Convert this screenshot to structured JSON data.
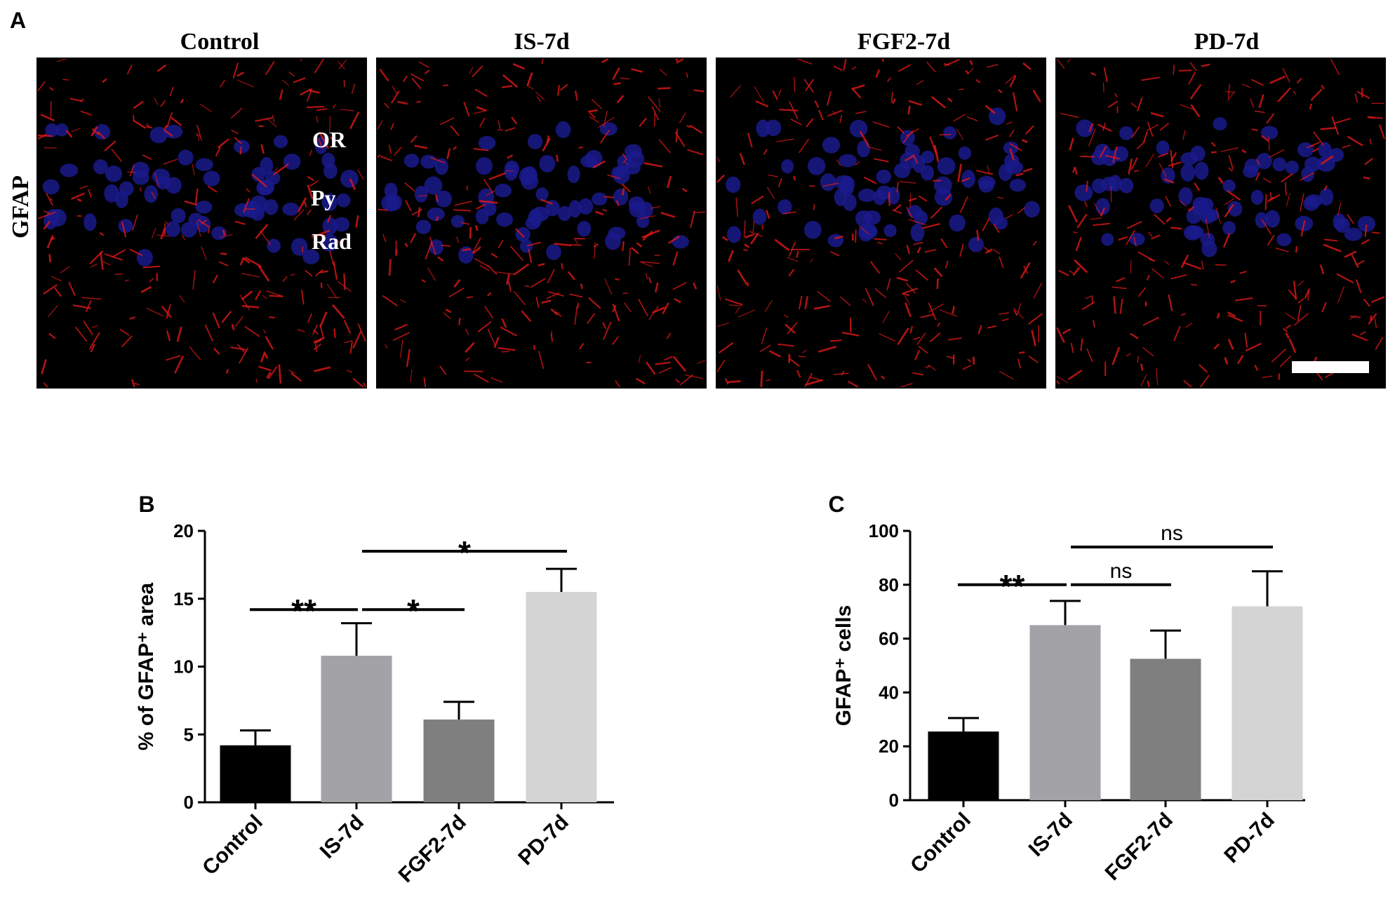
{
  "figure_a": {
    "label": "A",
    "columns": [
      "Control",
      "IS-7d",
      "FGF2-7d",
      "PD-7d"
    ],
    "row_label": "GFAP",
    "layers": [
      "OR",
      "Py",
      "Rad"
    ]
  },
  "chart_data": [
    {
      "type": "bar",
      "panel": "B",
      "ylabel": "% of GFAP⁺ area",
      "categories": [
        "Control",
        "IS-7d",
        "FGF2-7d",
        "PD-7d"
      ],
      "values": [
        4.2,
        10.8,
        6.1,
        15.5
      ],
      "errors": [
        1.1,
        2.4,
        1.3,
        1.7
      ],
      "colors": [
        "#000000",
        "#a2a2a7",
        "#7f7f7f",
        "#d4d4d4"
      ],
      "ylim": [
        0,
        20
      ],
      "yticks": [
        0,
        5,
        10,
        15,
        20
      ],
      "annotations": [
        {
          "between": [
            "Control",
            "IS-7d"
          ],
          "y": 14.2,
          "label": "**"
        },
        {
          "between": [
            "IS-7d",
            "FGF2-7d"
          ],
          "y": 14.2,
          "label": "*"
        },
        {
          "between": [
            "IS-7d",
            "PD-7d"
          ],
          "y": 18.5,
          "label": "*"
        }
      ]
    },
    {
      "type": "bar",
      "panel": "C",
      "ylabel": "GFAP⁺ cells",
      "categories": [
        "Control",
        "IS-7d",
        "FGF2-7d",
        "PD-7d"
      ],
      "values": [
        25.5,
        65,
        52.5,
        72
      ],
      "errors": [
        5,
        9,
        10.5,
        13
      ],
      "colors": [
        "#000000",
        "#a2a2a7",
        "#7f7f7f",
        "#d4d4d4"
      ],
      "ylim": [
        0,
        100
      ],
      "yticks": [
        0,
        20,
        40,
        60,
        80,
        100
      ],
      "annotations": [
        {
          "between": [
            "Control",
            "IS-7d"
          ],
          "y": 80,
          "label": "**"
        },
        {
          "between": [
            "IS-7d",
            "FGF2-7d"
          ],
          "y": 80,
          "label": "ns"
        },
        {
          "between": [
            "IS-7d",
            "PD-7d"
          ],
          "y": 94,
          "label": "ns"
        }
      ]
    }
  ]
}
